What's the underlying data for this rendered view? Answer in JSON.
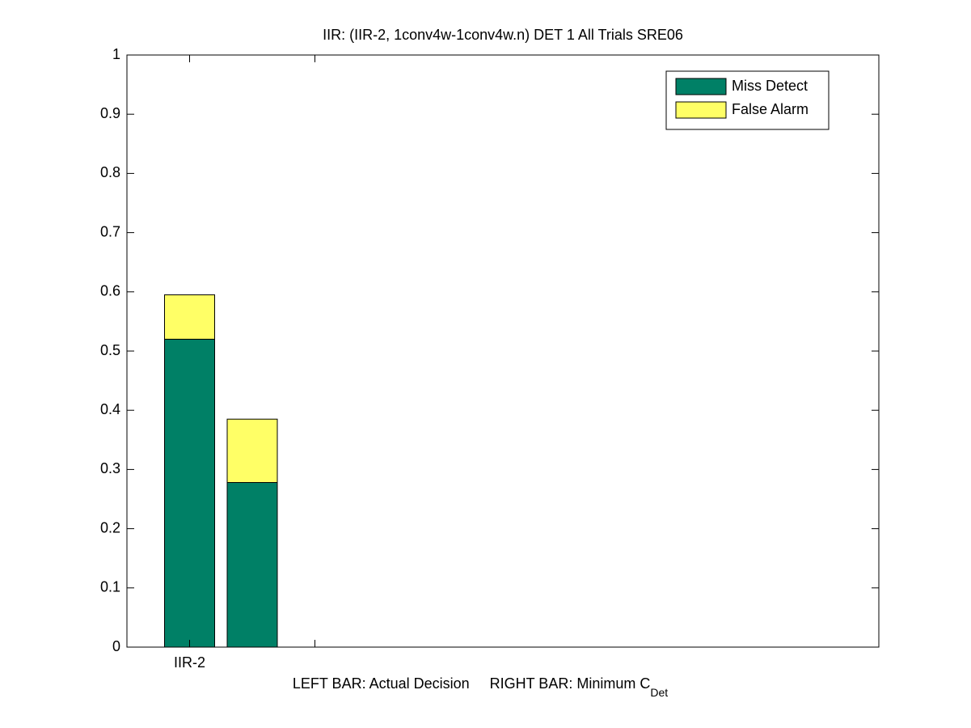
{
  "chart_data": {
    "type": "stacked_bar",
    "title": "IIR: (IIR-2, 1conv4w-1conv4w.n) DET 1 All Trials SRE06",
    "xlabel": "LEFT BAR: Actual Decision     RIGHT BAR: Minimum C",
    "xlabel_subscript": "Det",
    "x": [
      1,
      1.5
    ],
    "xlim": [
      0.5,
      6.5
    ],
    "xticks": [
      1,
      2
    ],
    "xtick_labels": [
      "IIR-2",
      null
    ],
    "ylim": [
      0,
      1
    ],
    "yticks": [
      0,
      0.1,
      0.2,
      0.3,
      0.4,
      0.5,
      0.6,
      0.7,
      0.8,
      0.9,
      1
    ],
    "grid": false,
    "legend": "northeast",
    "series": [
      {
        "name": "Miss Detect",
        "color": "#008066",
        "values": [
          0.52,
          0.278
        ]
      },
      {
        "name": "False Alarm",
        "color": "#ffff66",
        "values": [
          0.075,
          0.107
        ]
      }
    ]
  }
}
